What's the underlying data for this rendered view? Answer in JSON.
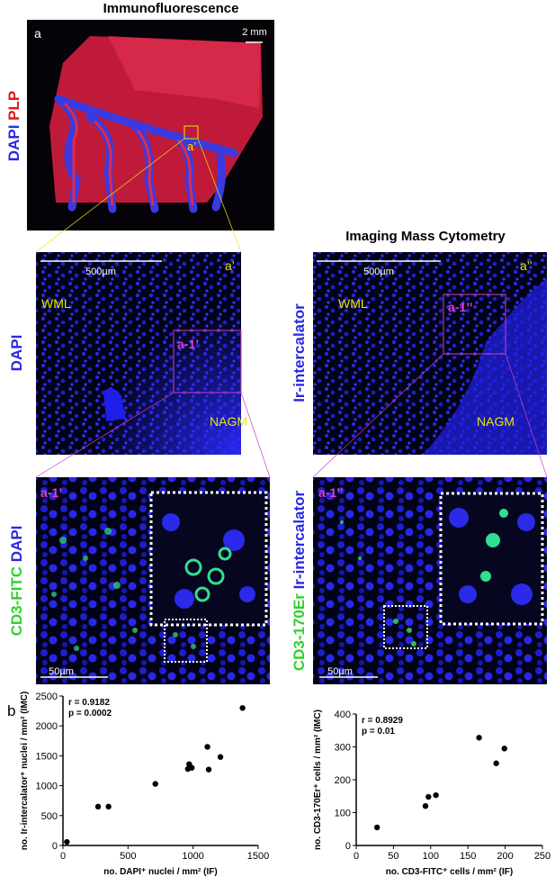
{
  "headings": {
    "immunofluorescence": "Immunofluorescence",
    "imc": "Imaging Mass Cytometry",
    "panel_a": "a",
    "panel_b": "b"
  },
  "overview": {
    "scale": "2 mm",
    "box_label": "a’",
    "stain_1": "DAPI",
    "stain_2": "PLP"
  },
  "if_panel": {
    "corner": "a’",
    "scale": "500µm",
    "region_1": "WML",
    "region_2": "NAGM",
    "box_label": "a-1’",
    "stain": "DAPI"
  },
  "imc_panel": {
    "corner": "a’’",
    "scale": "500µm",
    "region_1": "WML",
    "region_2": "NAGM",
    "box_label": "a-1’’",
    "stain": "Ir-intercalator"
  },
  "if_zoom": {
    "corner": "a-1’",
    "scale": "50µm",
    "stain_1": "CD3-FITC",
    "stain_2": "DAPI"
  },
  "imc_zoom": {
    "corner": "a-1’’",
    "scale": "50µm",
    "stain_1": "CD3-170Er",
    "stain_2": "Ir-intercalator"
  },
  "chart_data": [
    {
      "type": "scatter",
      "x_label": "no. DAPI⁺ nuclei / mm² (IF)",
      "y_label": "no. Ir-intercalator⁺ nuclei / mm² (IMC)",
      "annotations": [
        "r = 0.9182",
        "p = 0.0002"
      ],
      "color": "#000000",
      "x": [
        30,
        270,
        350,
        710,
        960,
        970,
        990,
        1110,
        1120,
        1210,
        1380
      ],
      "values": [
        60,
        650,
        650,
        1030,
        1280,
        1360,
        1300,
        1650,
        1270,
        1480,
        2300
      ],
      "xlim": [
        0,
        1500
      ],
      "xticks": [
        0,
        500,
        1000,
        1500
      ],
      "ylim": [
        0,
        2500
      ],
      "yticks": [
        0,
        500,
        1000,
        1500,
        2000,
        2500
      ]
    },
    {
      "type": "scatter",
      "x_label": "no. CD3-FITC⁺ cells / mm² (IF)",
      "y_label": "no. CD3-170Er⁺ cells / mm² (IMC)",
      "annotations": [
        "r = 0.8929",
        "p = 0.01"
      ],
      "color": "#000000",
      "x": [
        28,
        93,
        97,
        107,
        165,
        188,
        199
      ],
      "values": [
        55,
        120,
        148,
        153,
        328,
        250,
        295
      ],
      "xlim": [
        0,
        250
      ],
      "xticks": [
        0,
        50,
        100,
        150,
        200,
        250
      ],
      "ylim": [
        0,
        400
      ],
      "yticks": [
        0,
        100,
        200,
        300,
        400
      ]
    }
  ]
}
